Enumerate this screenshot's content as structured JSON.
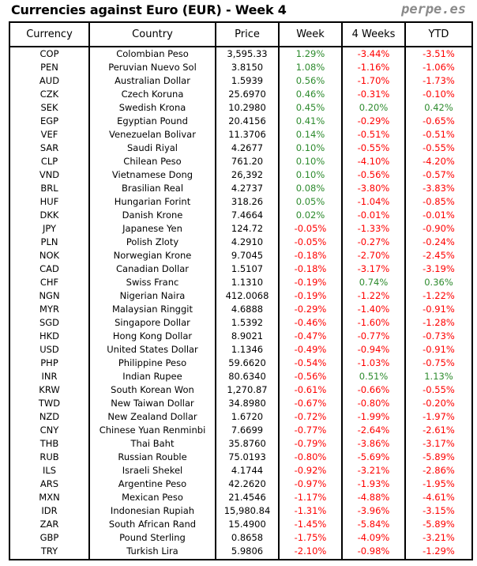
{
  "title": "Currencies against Euro (EUR) - Week 4",
  "brand": "perpe.es",
  "colors": {
    "positive": "#2e8b2e",
    "negative": "#ff0000"
  },
  "headers": [
    "Currency",
    "Country",
    "Price",
    "Week",
    "4 Weeks",
    "YTD"
  ],
  "rows": [
    [
      "COP",
      "Colombian Peso",
      "3,595.33",
      "1.29%",
      "-3.44%",
      "-3.51%"
    ],
    [
      "PEN",
      "Peruvian Nuevo Sol",
      "3.8150",
      "1.08%",
      "-1.16%",
      "-1.06%"
    ],
    [
      "AUD",
      "Australian Dollar",
      "1.5939",
      "0.56%",
      "-1.70%",
      "-1.73%"
    ],
    [
      "CZK",
      "Czech Koruna",
      "25.6970",
      "0.46%",
      "-0.31%",
      "-0.10%"
    ],
    [
      "SEK",
      "Swedish Krona",
      "10.2980",
      "0.45%",
      "0.20%",
      "0.42%"
    ],
    [
      "EGP",
      "Egyptian Pound",
      "20.4156",
      "0.41%",
      "-0.29%",
      "-0.65%"
    ],
    [
      "VEF",
      "Venezuelan Bolivar",
      "11.3706",
      "0.14%",
      "-0.51%",
      "-0.51%"
    ],
    [
      "SAR",
      "Saudi Riyal",
      "4.2677",
      "0.10%",
      "-0.55%",
      "-0.55%"
    ],
    [
      "CLP",
      "Chilean Peso",
      "761.20",
      "0.10%",
      "-4.10%",
      "-4.20%"
    ],
    [
      "VND",
      "Vietnamese Dong",
      "26,392",
      "0.10%",
      "-0.56%",
      "-0.57%"
    ],
    [
      "BRL",
      "Brasilian Real",
      "4.2737",
      "0.08%",
      "-3.80%",
      "-3.83%"
    ],
    [
      "HUF",
      "Hungarian Forint",
      "318.26",
      "0.05%",
      "-1.04%",
      "-0.85%"
    ],
    [
      "DKK",
      "Danish Krone",
      "7.4664",
      "0.02%",
      "-0.01%",
      "-0.01%"
    ],
    [
      "JPY",
      "Japanese Yen",
      "124.72",
      "-0.05%",
      "-1.33%",
      "-0.90%"
    ],
    [
      "PLN",
      "Polish Zloty",
      "4.2910",
      "-0.05%",
      "-0.27%",
      "-0.24%"
    ],
    [
      "NOK",
      "Norwegian Krone",
      "9.7045",
      "-0.18%",
      "-2.70%",
      "-2.45%"
    ],
    [
      "CAD",
      "Canadian Dollar",
      "1.5107",
      "-0.18%",
      "-3.17%",
      "-3.19%"
    ],
    [
      "CHF",
      "Swiss Franc",
      "1.1310",
      "-0.19%",
      "0.74%",
      "0.36%"
    ],
    [
      "NGN",
      "Nigerian Naira",
      "412.0068",
      "-0.19%",
      "-1.22%",
      "-1.22%"
    ],
    [
      "MYR",
      "Malaysian Ringgit",
      "4.6888",
      "-0.29%",
      "-1.40%",
      "-0.91%"
    ],
    [
      "SGD",
      "Singapore Dollar",
      "1.5392",
      "-0.46%",
      "-1.60%",
      "-1.28%"
    ],
    [
      "HKD",
      "Hong Kong Dollar",
      "8.9021",
      "-0.47%",
      "-0.77%",
      "-0.73%"
    ],
    [
      "USD",
      "United States Dollar",
      "1.1346",
      "-0.49%",
      "-0.94%",
      "-0.91%"
    ],
    [
      "PHP",
      "Philippine Peso",
      "59.6620",
      "-0.54%",
      "-1.03%",
      "-0.75%"
    ],
    [
      "INR",
      "Indian Rupee",
      "80.6340",
      "-0.56%",
      "0.51%",
      "1.13%"
    ],
    [
      "KRW",
      "South Korean Won",
      "1,270.87",
      "-0.61%",
      "-0.66%",
      "-0.55%"
    ],
    [
      "TWD",
      "New Taiwan Dollar",
      "34.8980",
      "-0.67%",
      "-0.80%",
      "-0.20%"
    ],
    [
      "NZD",
      "New Zealand Dollar",
      "1.6720",
      "-0.72%",
      "-1.99%",
      "-1.97%"
    ],
    [
      "CNY",
      "Chinese Yuan Renminbi",
      "7.6699",
      "-0.77%",
      "-2.64%",
      "-2.61%"
    ],
    [
      "THB",
      "Thai Baht",
      "35.8760",
      "-0.79%",
      "-3.86%",
      "-3.17%"
    ],
    [
      "RUB",
      "Russian Rouble",
      "75.0193",
      "-0.80%",
      "-5.69%",
      "-5.89%"
    ],
    [
      "ILS",
      "Israeli Shekel",
      "4.1744",
      "-0.92%",
      "-3.21%",
      "-2.86%"
    ],
    [
      "ARS",
      "Argentine Peso",
      "42.2620",
      "-0.97%",
      "-1.93%",
      "-1.95%"
    ],
    [
      "MXN",
      "Mexican Peso",
      "21.4546",
      "-1.17%",
      "-4.88%",
      "-4.61%"
    ],
    [
      "IDR",
      "Indonesian Rupiah",
      "15,980.84",
      "-1.31%",
      "-3.96%",
      "-3.15%"
    ],
    [
      "ZAR",
      "South African Rand",
      "15.4900",
      "-1.45%",
      "-5.84%",
      "-5.89%"
    ],
    [
      "GBP",
      "Pound Sterling",
      "0.8658",
      "-1.75%",
      "-4.09%",
      "-3.21%"
    ],
    [
      "TRY",
      "Turkish Lira",
      "5.9806",
      "-2.10%",
      "-0.98%",
      "-1.29%"
    ]
  ]
}
